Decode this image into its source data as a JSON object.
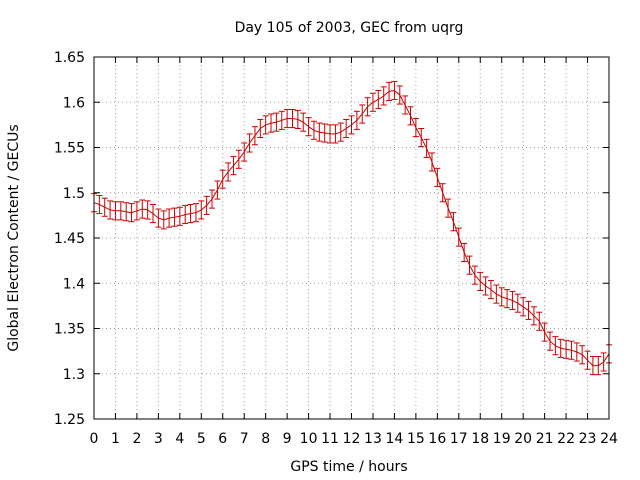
{
  "chart_data": {
    "type": "line",
    "title": "Day 105 of 2003, GEC from uqrg",
    "xlabel": "GPS time / hours",
    "ylabel": "Global Electron Content / GECUs",
    "xlim": [
      0,
      24
    ],
    "ylim": [
      1.25,
      1.65
    ],
    "xticks": [
      0,
      1,
      2,
      3,
      4,
      5,
      6,
      7,
      8,
      9,
      10,
      11,
      12,
      13,
      14,
      15,
      16,
      17,
      18,
      19,
      20,
      21,
      22,
      23,
      24
    ],
    "yticks": [
      1.25,
      1.3,
      1.35,
      1.4,
      1.45,
      1.5,
      1.55,
      1.6,
      1.65
    ],
    "ytick_labels": [
      "1.25",
      "1.3",
      "1.35",
      "1.4",
      "1.45",
      "1.5",
      "1.55",
      "1.6",
      "1.65"
    ],
    "grid": true,
    "error": 0.01,
    "series": [
      {
        "color": "#cc0000",
        "x": [
          0,
          0.25,
          0.5,
          0.75,
          1,
          1.25,
          1.5,
          1.75,
          2,
          2.25,
          2.5,
          2.75,
          3,
          3.25,
          3.5,
          3.75,
          4,
          4.25,
          4.5,
          4.75,
          5,
          5.25,
          5.5,
          5.75,
          6,
          6.25,
          6.5,
          6.75,
          7,
          7.25,
          7.5,
          7.75,
          8,
          8.25,
          8.5,
          8.75,
          9,
          9.25,
          9.5,
          9.75,
          10,
          10.25,
          10.5,
          10.75,
          11,
          11.25,
          11.5,
          11.75,
          12,
          12.25,
          12.5,
          12.75,
          13,
          13.25,
          13.5,
          13.75,
          14,
          14.25,
          14.5,
          14.75,
          15,
          15.25,
          15.5,
          15.75,
          16,
          16.25,
          16.5,
          16.75,
          17,
          17.25,
          17.5,
          17.75,
          18,
          18.25,
          18.5,
          18.75,
          19,
          19.25,
          19.5,
          19.75,
          20,
          20.25,
          20.5,
          20.75,
          21,
          21.25,
          21.5,
          21.75,
          22,
          22.25,
          22.5,
          22.75,
          23,
          23.25,
          23.5,
          23.75,
          24
        ],
        "y": [
          1.489,
          1.487,
          1.484,
          1.481,
          1.48,
          1.48,
          1.479,
          1.478,
          1.48,
          1.482,
          1.481,
          1.477,
          1.472,
          1.47,
          1.472,
          1.473,
          1.474,
          1.476,
          1.477,
          1.478,
          1.481,
          1.486,
          1.493,
          1.503,
          1.515,
          1.523,
          1.53,
          1.537,
          1.545,
          1.555,
          1.563,
          1.571,
          1.575,
          1.577,
          1.578,
          1.58,
          1.582,
          1.582,
          1.581,
          1.578,
          1.573,
          1.569,
          1.567,
          1.566,
          1.565,
          1.565,
          1.567,
          1.571,
          1.575,
          1.58,
          1.587,
          1.595,
          1.6,
          1.603,
          1.607,
          1.612,
          1.613,
          1.608,
          1.597,
          1.585,
          1.572,
          1.561,
          1.549,
          1.534,
          1.517,
          1.5,
          1.483,
          1.468,
          1.451,
          1.434,
          1.42,
          1.409,
          1.402,
          1.397,
          1.393,
          1.388,
          1.385,
          1.383,
          1.381,
          1.378,
          1.374,
          1.37,
          1.364,
          1.358,
          1.346,
          1.336,
          1.331,
          1.328,
          1.327,
          1.326,
          1.324,
          1.321,
          1.315,
          1.309,
          1.309,
          1.313,
          1.322
        ]
      }
    ]
  }
}
